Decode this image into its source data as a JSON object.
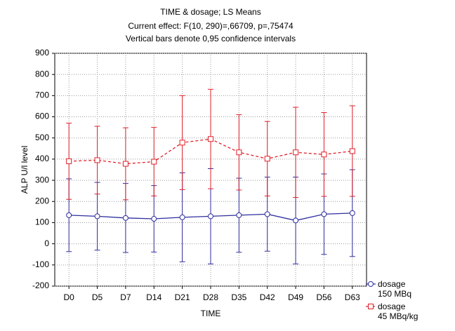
{
  "chart_data": {
    "type": "line",
    "title": "TIME & dosage; LS Means",
    "subtitle": [
      "Current effect: F(10, 290)=,66709, p=,75474",
      "Vertical bars denote 0,95 confidence intervals"
    ],
    "x_label": "TIME",
    "y_label": "ALP U/l level",
    "categories": [
      "D0",
      "D5",
      "D7",
      "D14",
      "D21",
      "D28",
      "D35",
      "D42",
      "D49",
      "D56",
      "D63"
    ],
    "series": [
      {
        "name": "dosage\n150 MBq",
        "color": "#2e2e9e",
        "marker": "circle",
        "dashed": false,
        "values": [
          135,
          130,
          122,
          118,
          125,
          130,
          135,
          140,
          110,
          140,
          145
        ],
        "errors": [
          172,
          160,
          163,
          157,
          210,
          225,
          175,
          175,
          205,
          190,
          205
        ]
      },
      {
        "name": "dosage\n45 MBq/kg",
        "color": "#e0202a",
        "marker": "square",
        "dashed": true,
        "values": [
          390,
          395,
          378,
          388,
          478,
          495,
          432,
          402,
          432,
          422,
          438
        ],
        "errors": [
          180,
          160,
          170,
          162,
          222,
          235,
          178,
          176,
          213,
          198,
          214
        ]
      }
    ],
    "ylim": [
      -200,
      900
    ],
    "yticks": [
      -200,
      -100,
      0,
      100,
      200,
      300,
      400,
      500,
      600,
      700,
      800,
      900
    ],
    "grid": true
  }
}
